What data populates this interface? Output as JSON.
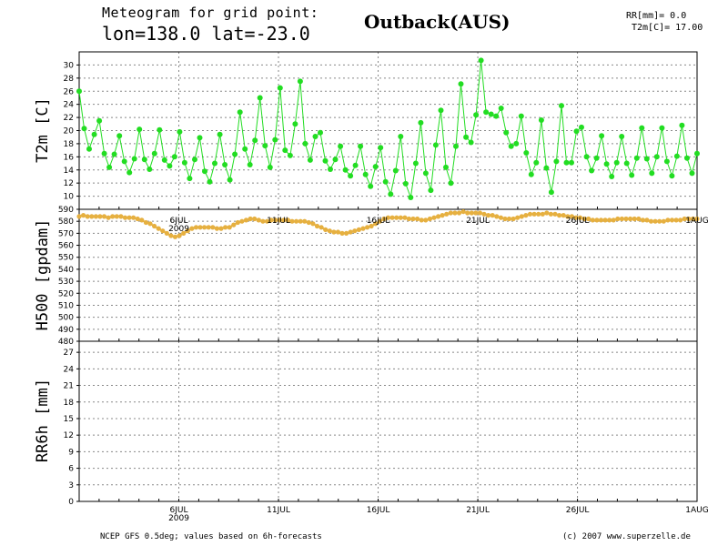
{
  "header": {
    "line1": "Meteogram for grid point:",
    "line2": "lon=138.0 lat=-23.0",
    "location": "Outback(AUS)",
    "rr_label": "RR[mm]= 0.0",
    "t2m_label": "T2m[C]= 17.00"
  },
  "footer": {
    "left": "NCEP GFS 0.5deg; values based on 6h-forecasts",
    "right": "(c) 2007 www.superzelle.de"
  },
  "colors": {
    "t2m": "#22dd22",
    "h500": "#e6b040",
    "axis": "#000000",
    "grid": "#888888"
  },
  "chart_data": [
    {
      "type": "line",
      "ylabel": "T2m [C]",
      "ylim": [
        8,
        32
      ],
      "yticks": [
        10,
        12,
        14,
        16,
        18,
        20,
        22,
        24,
        26,
        28,
        30
      ],
      "grid": true,
      "x_ticks": [
        "6JUL",
        "11JUL",
        "16JUL",
        "21JUL",
        "26JUL",
        "1AUG"
      ],
      "x_tick_days": [
        5,
        10,
        15,
        20,
        25,
        31
      ],
      "x_sublabel": "2009",
      "x_sublabel_day": 5,
      "x_range_days": [
        0,
        31
      ],
      "series": [
        {
          "values": [
            26.0,
            20.3,
            17.2,
            19.4,
            21.5,
            16.5,
            14.4,
            16.4,
            19.2,
            15.3,
            13.6,
            15.7,
            20.2,
            15.6,
            14.1,
            16.5,
            20.1,
            15.5,
            14.6,
            16.0,
            19.8,
            15.1,
            12.7,
            15.6,
            18.9,
            13.8,
            12.2,
            15.0,
            19.4,
            14.8,
            12.5,
            16.4,
            22.8,
            17.2,
            14.8,
            18.5,
            25.0,
            17.7,
            14.4,
            18.6,
            26.5,
            17.0,
            16.2,
            21.0,
            27.5,
            18.0,
            15.5,
            19.1,
            19.7,
            15.4,
            14.1,
            15.6,
            17.6,
            14.0,
            13.1,
            14.7,
            17.6,
            13.3,
            11.5,
            14.5,
            17.4,
            12.2,
            10.3,
            13.9,
            19.1,
            11.9,
            9.8,
            15.0,
            21.2,
            13.5,
            10.9,
            17.8,
            23.1,
            14.4,
            12.0,
            17.6,
            27.1,
            19.0,
            18.2,
            22.4,
            30.7,
            22.8,
            22.5,
            22.2,
            23.4,
            19.7,
            17.6,
            18.0,
            22.2,
            16.6,
            13.3,
            15.1,
            21.6,
            14.3,
            10.6,
            15.3,
            23.8,
            15.1,
            15.1,
            19.9,
            20.5,
            16.0,
            13.9,
            15.8,
            19.2,
            14.9,
            13.0,
            15.1,
            19.1,
            15.0,
            13.2,
            15.8,
            20.4,
            15.7,
            13.5,
            16.0,
            20.4,
            15.3,
            13.1,
            16.1,
            20.8,
            15.8,
            13.5,
            16.5
          ]
        }
      ]
    },
    {
      "type": "line",
      "ylabel": "H500 [gpdam]",
      "ylim": [
        480,
        590
      ],
      "yticks": [
        480,
        490,
        500,
        510,
        520,
        530,
        540,
        550,
        560,
        570,
        580,
        590
      ],
      "grid": true,
      "series": [
        {
          "values": [
            584,
            585,
            584,
            584,
            584,
            584,
            584,
            583,
            584,
            584,
            584,
            583,
            583,
            583,
            582,
            581,
            579,
            578,
            576,
            574,
            572,
            570,
            568,
            567,
            568,
            570,
            572,
            574,
            575,
            575,
            575,
            575,
            575,
            574,
            574,
            575,
            575,
            577,
            579,
            580,
            581,
            582,
            582,
            581,
            580,
            580,
            581,
            581,
            581,
            581,
            581,
            580,
            580,
            580,
            580,
            579,
            578,
            576,
            575,
            573,
            572,
            571,
            571,
            570,
            570,
            571,
            572,
            573,
            574,
            575,
            576,
            578,
            580,
            582,
            583,
            583,
            583,
            583,
            583,
            582,
            582,
            582,
            581,
            581,
            582,
            583,
            584,
            585,
            586,
            587,
            587,
            587,
            588,
            587,
            587,
            587,
            587,
            586,
            585,
            585,
            584,
            583,
            582,
            582,
            582,
            583,
            584,
            585,
            586,
            586,
            586,
            586,
            587,
            586,
            586,
            585,
            585,
            584,
            584,
            583,
            583,
            582,
            582,
            581,
            581,
            581,
            581,
            581,
            581,
            582,
            582,
            582,
            582,
            582,
            582,
            581,
            581,
            580,
            580,
            580,
            580,
            581,
            581,
            581,
            581,
            582,
            582,
            582,
            582
          ]
        }
      ]
    },
    {
      "type": "bar",
      "ylabel": "RR6h [mm]",
      "ylim": [
        0,
        29
      ],
      "yticks": [
        0,
        3,
        6,
        9,
        12,
        15,
        18,
        21,
        24,
        27
      ],
      "grid": true,
      "x_ticks": [
        "6JUL",
        "11JUL",
        "16JUL",
        "21JUL",
        "26JUL",
        "1AUG"
      ],
      "x_tick_days": [
        5,
        10,
        15,
        20,
        25,
        31
      ],
      "x_sublabel": "2009",
      "x_sublabel_day": 5,
      "values": []
    }
  ]
}
